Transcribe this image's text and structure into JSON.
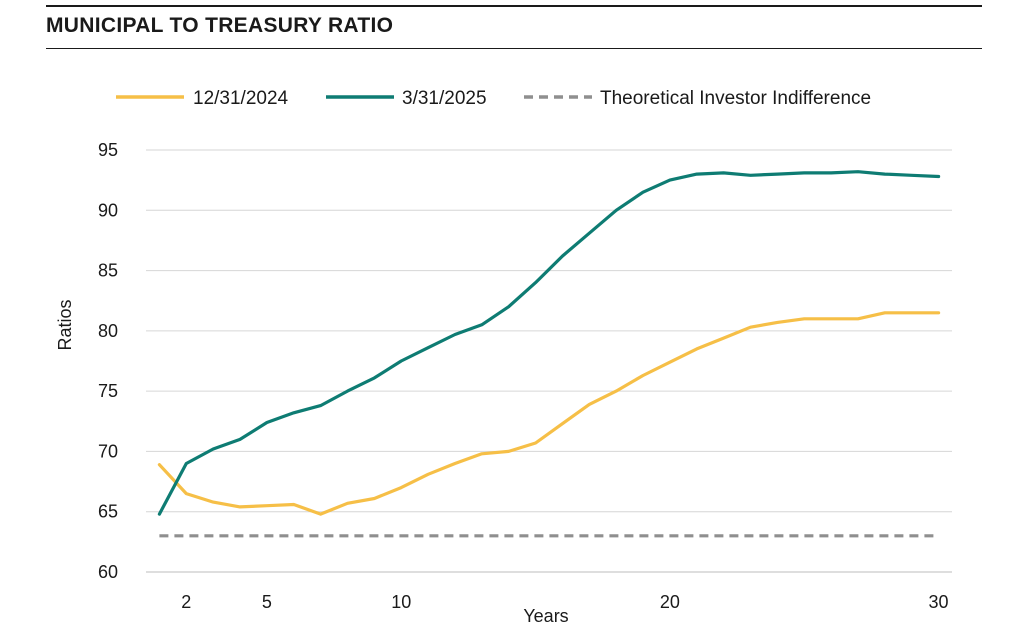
{
  "header": {
    "title": "MUNICIPAL TO TREASURY RATIO"
  },
  "chart_data": {
    "type": "line",
    "title": "MUNICIPAL TO TREASURY RATIO",
    "xlabel": "Years",
    "ylabel": "Ratios",
    "xlim": [
      0.5,
      30.5
    ],
    "ylim": [
      60,
      95
    ],
    "x_ticks": [
      2,
      5,
      10,
      20,
      30
    ],
    "y_ticks": [
      60,
      65,
      70,
      75,
      80,
      85,
      90,
      95
    ],
    "grid": "horizontal",
    "legend_position": "top",
    "x": [
      1,
      2,
      3,
      4,
      5,
      6,
      7,
      8,
      9,
      10,
      11,
      12,
      13,
      14,
      15,
      16,
      17,
      18,
      19,
      20,
      21,
      22,
      23,
      24,
      25,
      26,
      27,
      28,
      29,
      30
    ],
    "series": [
      {
        "name": "12/31/2024",
        "color": "#f6bf47",
        "style": "solid",
        "values": [
          68.9,
          66.5,
          65.8,
          65.4,
          65.5,
          65.6,
          64.8,
          65.7,
          66.1,
          67.0,
          68.1,
          69.0,
          69.8,
          70.0,
          70.7,
          72.3,
          73.9,
          75.0,
          76.3,
          77.4,
          78.5,
          79.4,
          80.3,
          80.7,
          81.0,
          81.0,
          81.0,
          81.5,
          81.5,
          81.5
        ]
      },
      {
        "name": "3/31/2025",
        "color": "#0e7c73",
        "style": "solid",
        "values": [
          64.8,
          69.0,
          70.2,
          71.0,
          72.4,
          73.2,
          73.8,
          75.0,
          76.1,
          77.5,
          78.6,
          79.7,
          80.5,
          82.0,
          84.0,
          86.2,
          88.1,
          90.0,
          91.5,
          92.5,
          93.0,
          93.1,
          92.9,
          93.0,
          93.1,
          93.1,
          93.2,
          93.0,
          92.9,
          92.8
        ]
      },
      {
        "name": "Theoretical Investor Indifference",
        "color": "#8f8f8f",
        "style": "dashed",
        "values": [
          63,
          63,
          63,
          63,
          63,
          63,
          63,
          63,
          63,
          63,
          63,
          63,
          63,
          63,
          63,
          63,
          63,
          63,
          63,
          63,
          63,
          63,
          63,
          63,
          63,
          63,
          63,
          63,
          63,
          63
        ]
      }
    ]
  }
}
